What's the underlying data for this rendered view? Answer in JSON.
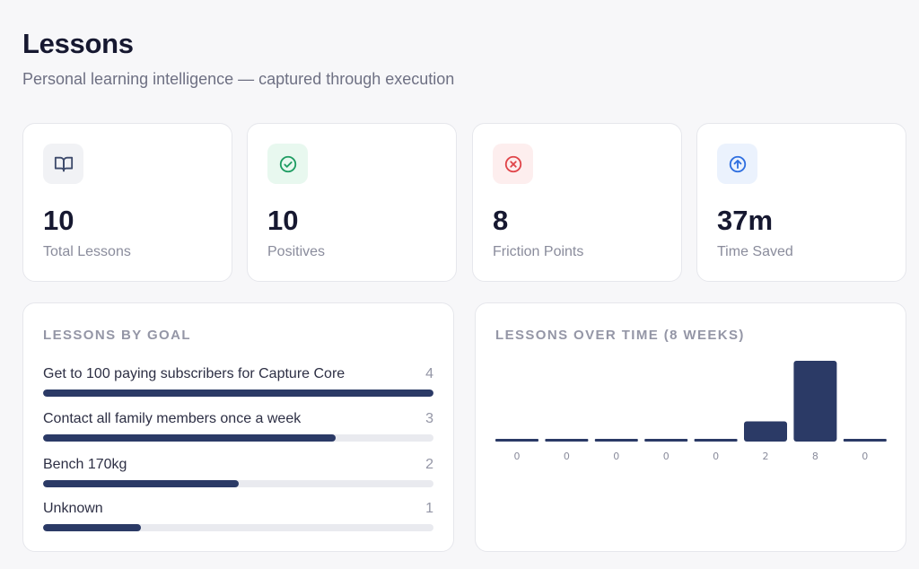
{
  "header": {
    "title": "Lessons",
    "subtitle": "Personal learning intelligence — captured through execution"
  },
  "stats": [
    {
      "value": "10",
      "label": "Total Lessons",
      "icon": "book-open-icon",
      "icon_color": "#3d4a6b",
      "icon_bg": "#f1f2f5"
    },
    {
      "value": "10",
      "label": "Positives",
      "icon": "check-circle-icon",
      "icon_color": "#1f9d63",
      "icon_bg": "#e8f8ef"
    },
    {
      "value": "8",
      "label": "Friction Points",
      "icon": "x-circle-icon",
      "icon_color": "#e0454a",
      "icon_bg": "#fdeeee"
    },
    {
      "value": "37m",
      "label": "Time Saved",
      "icon": "arrow-up-circle-icon",
      "icon_color": "#2f6fe0",
      "icon_bg": "#ebf2fd"
    }
  ],
  "goals_panel": {
    "title": "LESSONS BY GOAL",
    "max": 4,
    "items": [
      {
        "label": "Get to 100 paying subscribers for Capture Core",
        "count": 4
      },
      {
        "label": "Contact all family members once a week",
        "count": 3
      },
      {
        "label": "Bench 170kg",
        "count": 2
      },
      {
        "label": "Unknown",
        "count": 1
      }
    ]
  },
  "time_panel": {
    "title": "LESSONS OVER TIME (8 WEEKS)"
  },
  "chart_data": {
    "type": "bar",
    "title": "LESSONS OVER TIME (8 WEEKS)",
    "categories": [
      "",
      "",
      "",
      "",
      "",
      "",
      "",
      ""
    ],
    "values": [
      0,
      0,
      0,
      0,
      0,
      2,
      8,
      0
    ],
    "ylim": [
      0,
      8
    ],
    "grid": false,
    "legend": "none",
    "bar_color": "#2b3a66"
  },
  "colors": {
    "accent": "#2b3a66",
    "track": "#e9eaef"
  }
}
